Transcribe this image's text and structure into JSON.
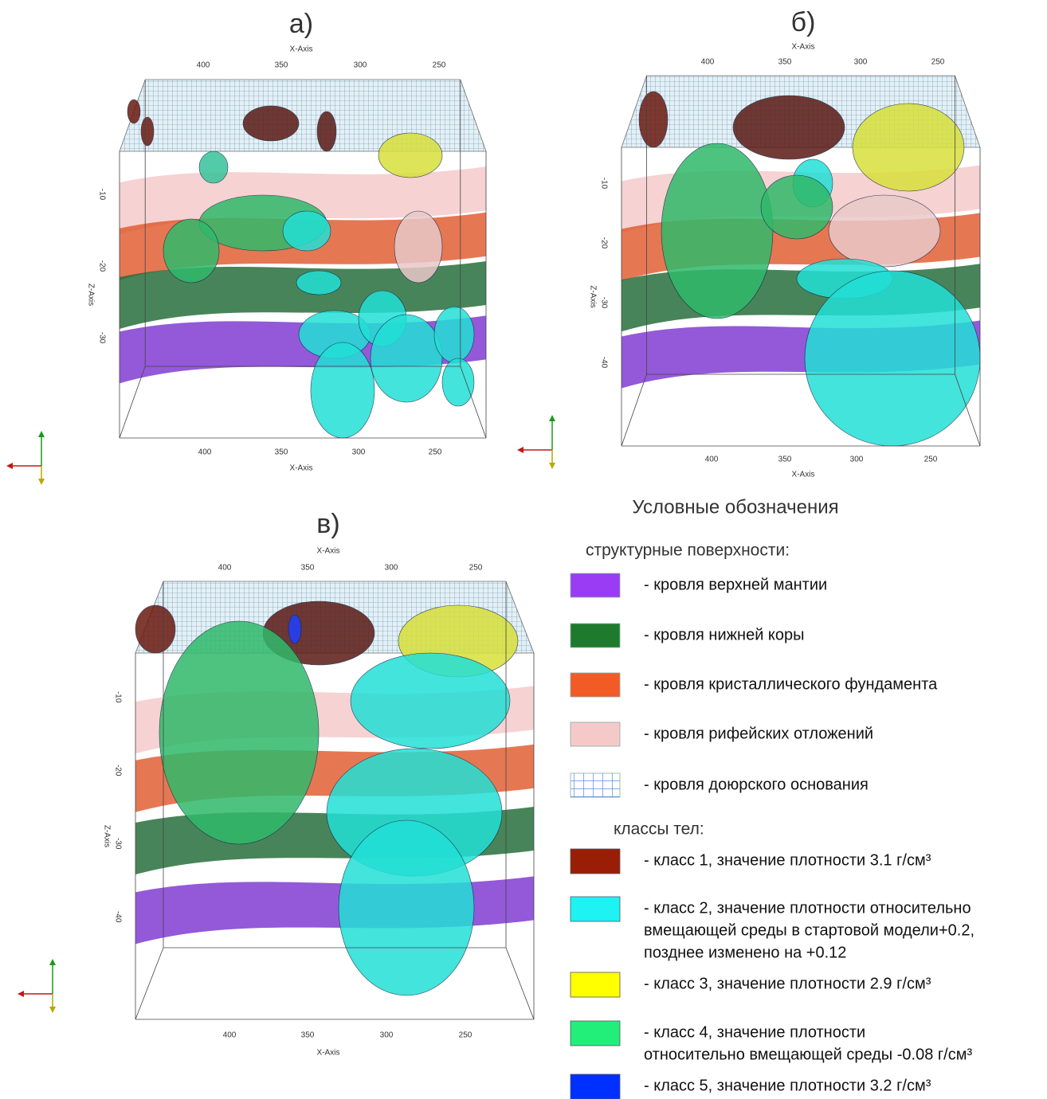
{
  "panels": [
    {
      "label": "а)",
      "x_axis_label": "X-Axis",
      "x_ticks": [
        400,
        350,
        300,
        250
      ],
      "z_axis_label": "Z-Axis",
      "z_ticks": [
        -10,
        -20,
        -30
      ]
    },
    {
      "label": "б)",
      "x_axis_label": "X-Axis",
      "x_ticks": [
        400,
        350,
        300,
        250
      ],
      "z_axis_label": "Z-Axis",
      "z_ticks": [
        -10,
        -20,
        -30,
        -40
      ]
    },
    {
      "label": "в)",
      "x_axis_label": "X-Axis",
      "x_ticks": [
        400,
        350,
        300,
        250
      ],
      "z_axis_label": "Z-Axis",
      "z_ticks": [
        -10,
        -20,
        -30,
        -40
      ]
    }
  ],
  "legend": {
    "title": "Условные обозначения",
    "surfaces_header": "структурные поверхности:",
    "surfaces": [
      [
        "- кровля верхней мантии"
      ],
      [
        "- кровля нижней коры"
      ],
      [
        "- кровля кристаллического фундамента"
      ],
      [
        "- кровля рифейских отложений"
      ],
      [
        "- кровля доюрского основания"
      ]
    ],
    "bodies_header": "классы тел:",
    "bodies": [
      [
        "- класс 1, значение плотности 3.1 г/см³"
      ],
      [
        "- класс 2, значение плотности относительно",
        "вмещающей среды в стартовой модели+0.2,",
        "позднее изменено на +0.12"
      ],
      [
        "- класс 3, значение плотности 2.9 г/см³"
      ],
      [
        "- класс 4, значение плотности",
        "относительно вмещающей среды -0.08 г/см³"
      ],
      [
        "- класс 5, значение плотности 3.2 г/см³"
      ]
    ]
  }
}
